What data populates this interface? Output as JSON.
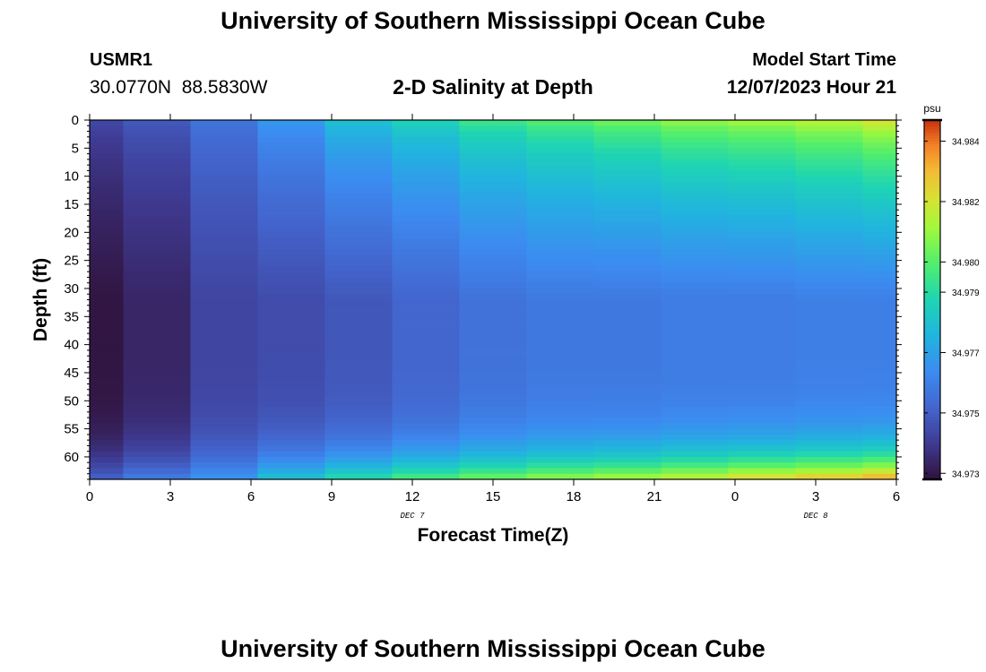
{
  "page": {
    "title": "University of Southern Mississippi Ocean Cube",
    "footer_title": "University of Southern Mississippi Ocean Cube",
    "station_id": "USMR1",
    "coordinates": "30.0770N  88.5830W",
    "plot_title": "2-D Salinity at Depth",
    "model_start_label": "Model Start Time",
    "model_start_value": "12/07/2023 Hour 21"
  },
  "chart_data": {
    "type": "heatmap",
    "title": "2-D Salinity at Depth",
    "xlabel": "Forecast Time(Z)",
    "ylabel": "Depth (ft)",
    "x_tick_labels": [
      "0",
      "3",
      "6",
      "9",
      "12",
      "15",
      "18",
      "21",
      "0",
      "3",
      "6"
    ],
    "x_hours": [
      0,
      3,
      6,
      9,
      12,
      15,
      18,
      21,
      24,
      27,
      30
    ],
    "xlim": [
      0,
      30
    ],
    "date_labels": [
      {
        "text": "DEC 7",
        "hour": 12
      },
      {
        "text": "DEC 8",
        "hour": 27
      }
    ],
    "y_ticks": [
      0,
      5,
      10,
      15,
      20,
      25,
      30,
      35,
      40,
      45,
      50,
      55,
      60
    ],
    "ylim": [
      0,
      64
    ],
    "colorbar": {
      "unit": "psu",
      "min": 34.9728,
      "max": 34.9847,
      "ticks": [
        34.973,
        34.975,
        34.977,
        34.979,
        34.98,
        34.982,
        34.984
      ],
      "tick_labels": [
        "34.973",
        "34.975",
        "34.977",
        "34.979",
        "34.980",
        "34.982",
        "34.984"
      ]
    },
    "time_columns_hours": [
      0.0,
      2.5,
      5.0,
      7.5,
      10.0,
      12.5,
      15.0,
      17.5,
      20.0,
      22.5,
      25.0,
      27.5,
      30.0
    ],
    "depth_levels_ft": [
      0,
      32,
      64
    ],
    "salinity_profiles": [
      {
        "hour": 0.0,
        "surface": 34.9745,
        "mid": 34.9729,
        "bottom": 34.9752
      },
      {
        "hour": 2.5,
        "surface": 34.975,
        "mid": 34.9734,
        "bottom": 34.976
      },
      {
        "hour": 5.0,
        "surface": 34.9758,
        "mid": 34.9743,
        "bottom": 34.9768
      },
      {
        "hour": 7.5,
        "surface": 34.977,
        "mid": 34.9745,
        "bottom": 34.9782
      },
      {
        "hour": 10.0,
        "surface": 34.9783,
        "mid": 34.9748,
        "bottom": 34.9792
      },
      {
        "hour": 12.5,
        "surface": 34.979,
        "mid": 34.9752,
        "bottom": 34.98
      },
      {
        "hour": 15.0,
        "surface": 34.9798,
        "mid": 34.9756,
        "bottom": 34.9806
      },
      {
        "hour": 17.5,
        "surface": 34.9803,
        "mid": 34.9758,
        "bottom": 34.9811
      },
      {
        "hour": 20.0,
        "surface": 34.9808,
        "mid": 34.9758,
        "bottom": 34.9815
      },
      {
        "hour": 22.5,
        "surface": 34.9813,
        "mid": 34.9759,
        "bottom": 34.982
      },
      {
        "hour": 25.0,
        "surface": 34.9816,
        "mid": 34.9759,
        "bottom": 34.9826
      },
      {
        "hour": 27.5,
        "surface": 34.982,
        "mid": 34.976,
        "bottom": 34.983
      },
      {
        "hour": 30.0,
        "surface": 34.9826,
        "mid": 34.976,
        "bottom": 34.9836
      }
    ]
  }
}
